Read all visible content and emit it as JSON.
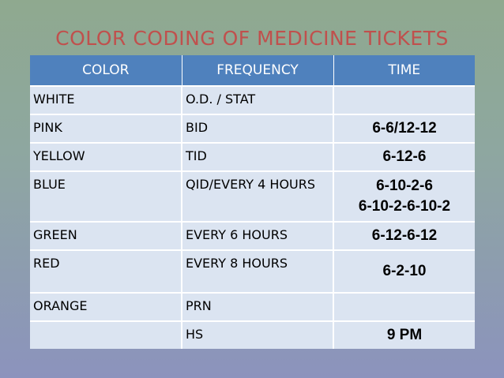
{
  "title": "COLOR CODING OF MEDICINE TICKETS",
  "headers": [
    "COLOR",
    "FREQUENCY",
    "TIME"
  ],
  "rows": [
    {
      "color": "WHITE",
      "frequency": "O.D. / STAT",
      "time": ""
    },
    {
      "color": "PINK",
      "frequency": "BID",
      "time": "6-6/12-12"
    },
    {
      "color": "YELLOW",
      "frequency": "TID",
      "time": "6-12-6"
    },
    {
      "color": "BLUE",
      "frequency": "QID/EVERY 4 HOURS",
      "time": "6-10-2-6",
      "time2": "6-10-2-6-10-2"
    },
    {
      "color": "GREEN",
      "frequency": "EVERY 6 HOURS",
      "time": "6-12-6-12"
    },
    {
      "color": "RED",
      "frequency": "EVERY 8 HOURS",
      "time": "6-2-10"
    },
    {
      "color": "ORANGE",
      "frequency": "PRN",
      "time": ""
    },
    {
      "color": "",
      "frequency": "HS",
      "time": "9 PM"
    }
  ],
  "colors": {
    "title": "#c0504d",
    "header_bg": "#4f81bd",
    "cell_bg": "#dbe4f1"
  }
}
